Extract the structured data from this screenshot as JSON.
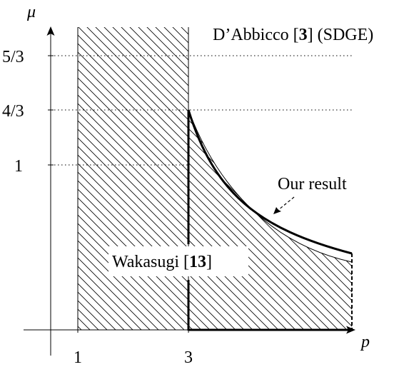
{
  "axes": {
    "x_label": "p",
    "y_label": "μ"
  },
  "x_ticks": [
    {
      "label": "1",
      "value": 1
    },
    {
      "label": "3",
      "value": 3
    }
  ],
  "y_ticks": [
    {
      "label": "5/3",
      "value": 1.6667
    },
    {
      "label": "4/3",
      "value": 1.3333
    },
    {
      "label": "1",
      "value": 1
    }
  ],
  "annotations": {
    "dabbicco": {
      "before": "D’Abbicco [",
      "ref": "3",
      "after": "] (SDGE)"
    },
    "our_result": "Our result",
    "wakasugi": {
      "before": "Wakasugi [",
      "ref": "13",
      "after": "]"
    }
  },
  "colors": {
    "ink": "#000000",
    "background": "#ffffff"
  }
}
